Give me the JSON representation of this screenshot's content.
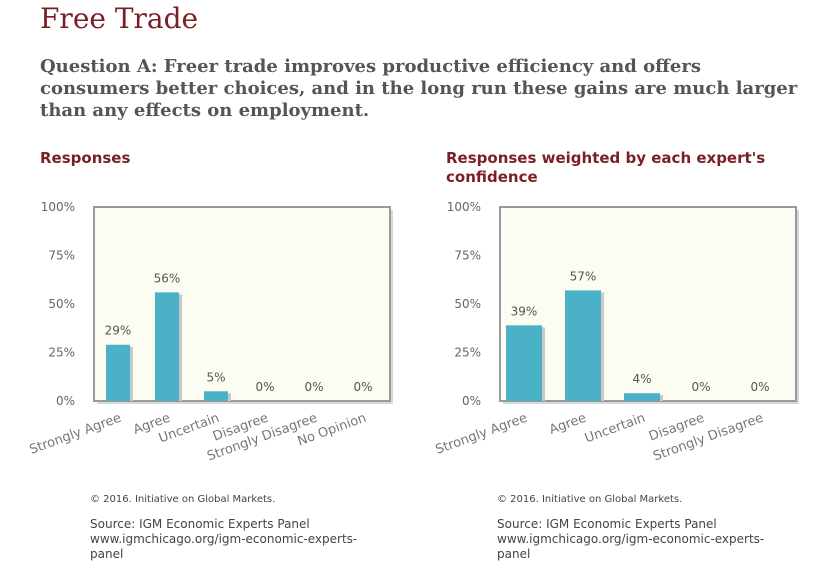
{
  "page": {
    "title": "Free Trade",
    "question": "Question A: Freer trade improves productive efficiency and offers consumers better choices, and in the long run these gains are much larger than any effects on employment."
  },
  "colors": {
    "bar": "#4ab1c6",
    "plot_bg": "#fdfcf2",
    "title": "#7a1f25"
  },
  "chart_data": [
    {
      "type": "bar",
      "title": "Responses",
      "categories": [
        "Strongly Agree",
        "Agree",
        "Uncertain",
        "Disagree",
        "Strongly Disagree",
        "No Opinion"
      ],
      "values": [
        29,
        56,
        5,
        0,
        0,
        0
      ],
      "data_labels": [
        "29%",
        "56%",
        "5%",
        "0%",
        "0%",
        "0%"
      ],
      "yticks": [
        "100%",
        "75%",
        "50%",
        "25%",
        "0%"
      ],
      "ylim": [
        0,
        100
      ],
      "grid": false,
      "legend": "none",
      "copyright": "© 2016. Initiative on Global Markets.",
      "source": "Source: IGM Economic Experts Panel",
      "link": "www.igmchicago.org/igm-economic-experts-panel"
    },
    {
      "type": "bar",
      "title": "Responses weighted by each expert's confidence",
      "categories": [
        "Strongly Agree",
        "Agree",
        "Uncertain",
        "Disagree",
        "Strongly Disagree"
      ],
      "values": [
        39,
        57,
        4,
        0,
        0
      ],
      "data_labels": [
        "39%",
        "57%",
        "4%",
        "0%",
        "0%"
      ],
      "yticks": [
        "100%",
        "75%",
        "50%",
        "25%",
        "0%"
      ],
      "ylim": [
        0,
        100
      ],
      "grid": false,
      "legend": "none",
      "copyright": "© 2016. Initiative on Global Markets.",
      "source": "Source: IGM Economic Experts Panel",
      "link": "www.igmchicago.org/igm-economic-experts-panel"
    }
  ]
}
